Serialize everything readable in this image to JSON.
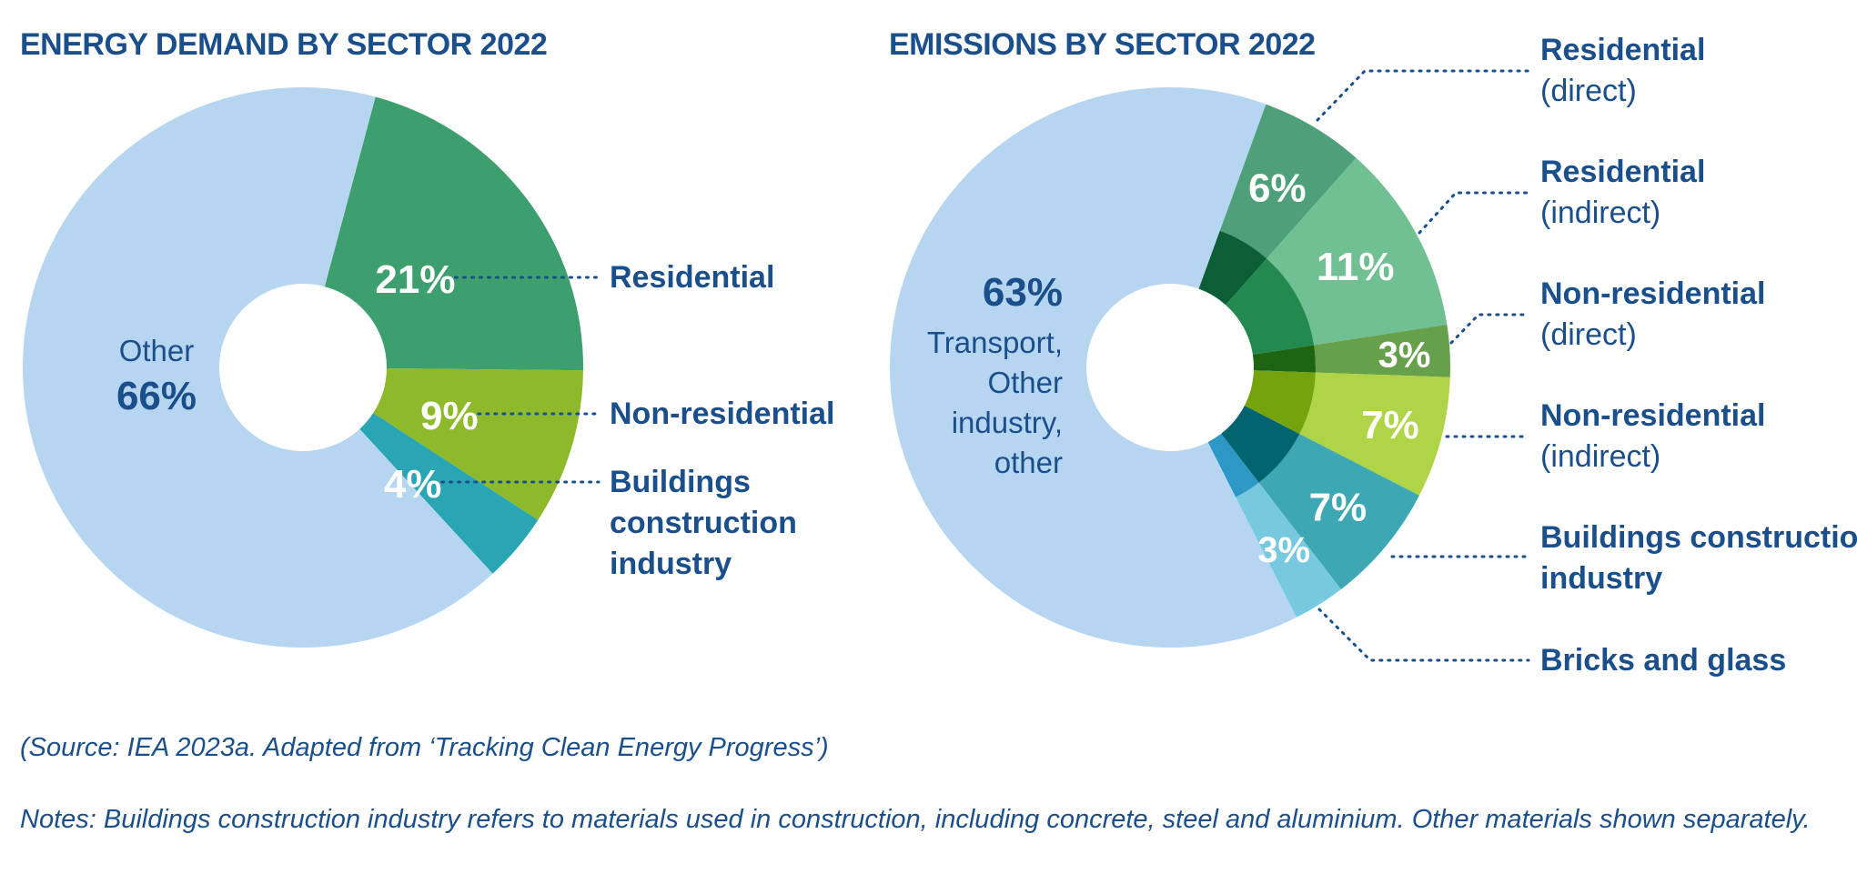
{
  "chart_data": [
    {
      "type": "pie",
      "title": "ENERGY DEMAND  BY SECTOR 2022",
      "slices": [
        {
          "label": "Residential",
          "value": 21,
          "value_label": "21%",
          "color": "#3d9e6e"
        },
        {
          "label": "Non-residential",
          "value": 9,
          "value_label": "9%",
          "color": "#8db92b"
        },
        {
          "label": "Buildings construction industry",
          "value": 4,
          "value_label": "4%",
          "color": "#2aa5b3"
        },
        {
          "label": "Other",
          "value": 66,
          "value_label": "66%",
          "color": "#b6d5f1"
        }
      ],
      "legend_labels": [
        [
          "Residential"
        ],
        [
          "Non-residential"
        ],
        [
          "Buildings",
          "construction",
          "industry"
        ]
      ],
      "other_label": "Other"
    },
    {
      "type": "pie",
      "title": "EMISSIONS BY SECTOR 2022",
      "slices": [
        {
          "label": "Residential (direct)",
          "value": 6,
          "value_label": "6%",
          "color": "#4ea07b"
        },
        {
          "label": "Residential (indirect)",
          "value": 11,
          "value_label": "11%",
          "color": "#70c093"
        },
        {
          "label": "Non-residential (direct)",
          "value": 3,
          "value_label": "3%",
          "color": "#67a04a"
        },
        {
          "label": "Non-residential (indirect)",
          "value": 7,
          "value_label": "7%",
          "color": "#b0d447"
        },
        {
          "label": "Buildings construction industry",
          "value": 7,
          "value_label": "7%",
          "color": "#3da7b4"
        },
        {
          "label": "Bricks and glass",
          "value": 3,
          "value_label": "3%",
          "color": "#76c9df"
        },
        {
          "label": "Transport, Other industry, other",
          "value": 63,
          "value_label": "63%",
          "color": "#b6d5f1"
        }
      ],
      "inner_ring_colors": [
        "#0b5e36",
        "#238a4f",
        "#1e6512",
        "#74a30c",
        "#02646e",
        "#2d98c6",
        "#b6d5f1"
      ],
      "legend_labels": [
        [
          "Residential",
          "(direct)"
        ],
        [
          "Residential",
          "(indirect)"
        ],
        [
          "Non-residential",
          "(direct)"
        ],
        [
          "Non-residential",
          "(indirect)"
        ],
        [
          "Buildings construction",
          "industry"
        ],
        [
          "Bricks and glass"
        ]
      ],
      "other_label_lines": [
        "Transport,",
        "Other",
        "industry,",
        "other"
      ]
    }
  ],
  "source": "(Source: IEA 2023a. Adapted from ‘Tracking Clean Energy Progress’)",
  "notes": "Notes: Buildings construction industry refers to materials used in construction, including concrete, steel and aluminium. Other materials shown separately."
}
